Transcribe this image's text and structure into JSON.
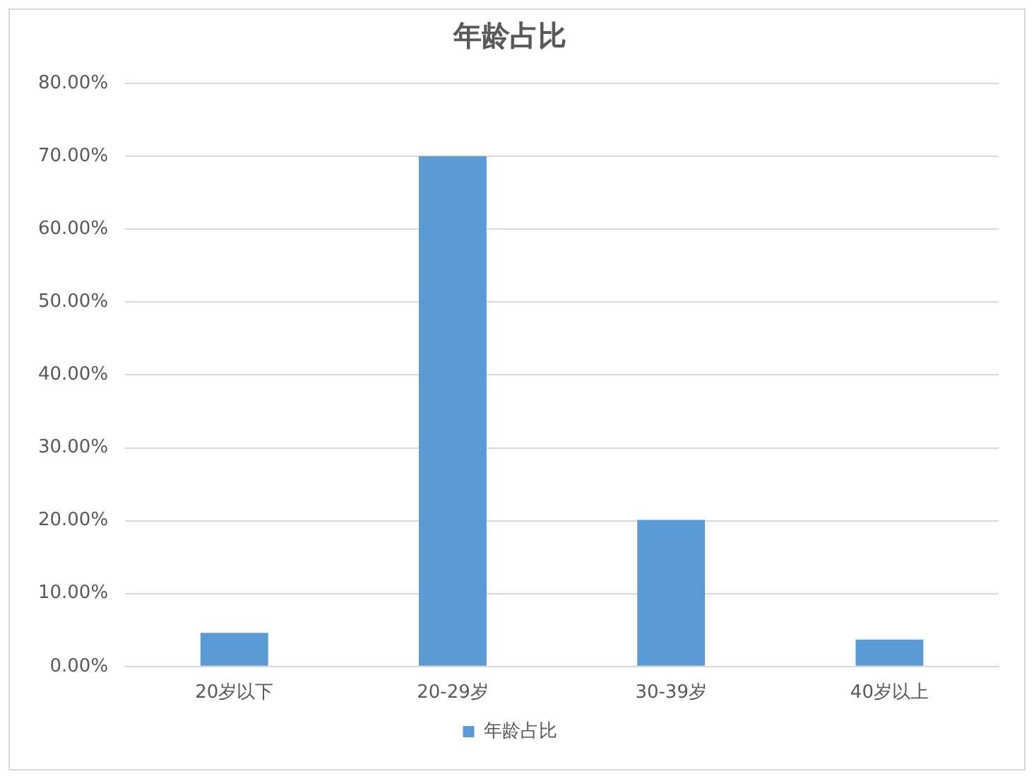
{
  "chart_data": {
    "type": "bar",
    "title": "年龄占比",
    "categories": [
      "20岁以下",
      "20-29岁",
      "30-39岁",
      "40岁以上"
    ],
    "series": [
      {
        "name": "年龄占比",
        "color": "#5b9bd5",
        "values": [
          4.6,
          70.0,
          20.1,
          3.7
        ]
      }
    ],
    "ylim": [
      0,
      80
    ],
    "yticks": [
      {
        "value": 0,
        "label": "0.00%"
      },
      {
        "value": 10,
        "label": "10.00%"
      },
      {
        "value": 20,
        "label": "20.00%"
      },
      {
        "value": 30,
        "label": "30.00%"
      },
      {
        "value": 40,
        "label": "40.00%"
      },
      {
        "value": 50,
        "label": "50.00%"
      },
      {
        "value": 60,
        "label": "60.00%"
      },
      {
        "value": 70,
        "label": "70.00%"
      },
      {
        "value": 80,
        "label": "80.00%"
      }
    ],
    "grid": "y",
    "legend": "bottom"
  }
}
